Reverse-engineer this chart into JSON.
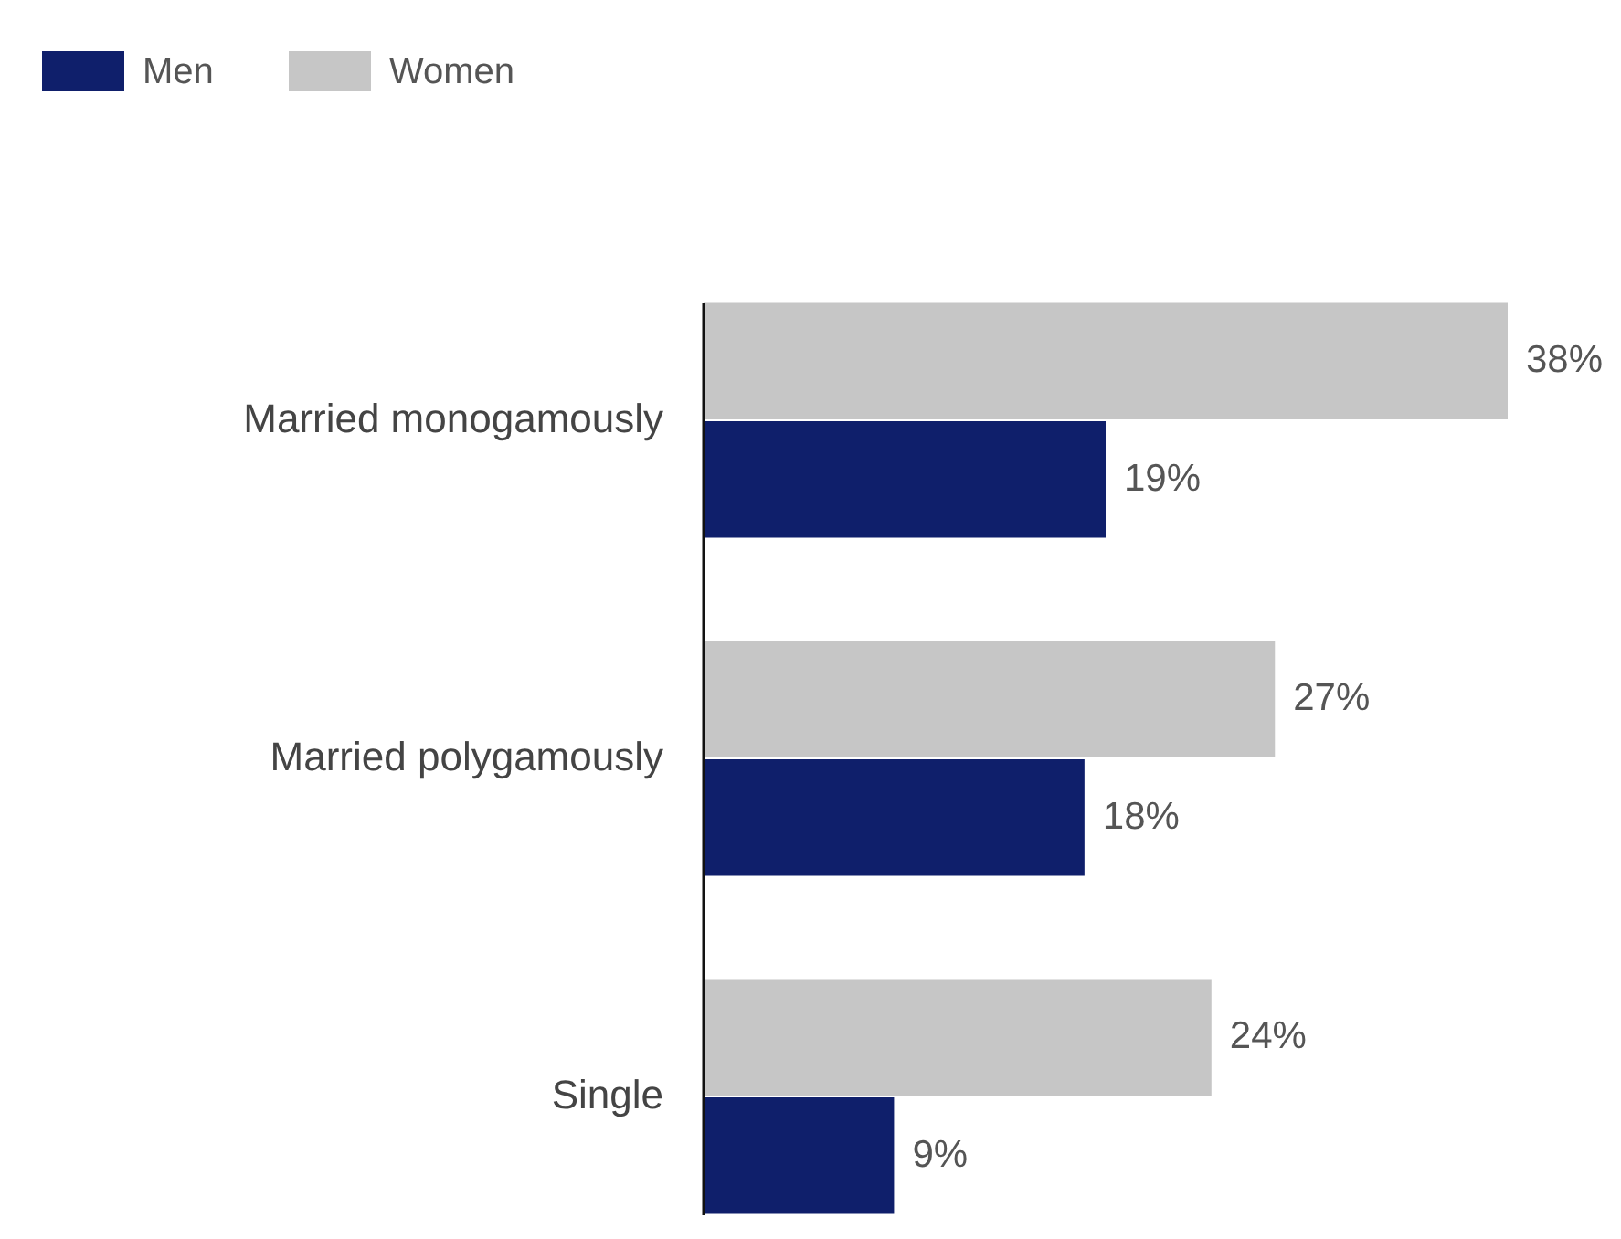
{
  "chart_data": {
    "type": "bar",
    "orientation": "horizontal",
    "categories": [
      "Married monogamously",
      "Married polygamously",
      "Single"
    ],
    "series": [
      {
        "name": "Men",
        "color": "#0f1f6b",
        "values": [
          19,
          18,
          9
        ],
        "value_labels": [
          "19%",
          "18%",
          "9%"
        ]
      },
      {
        "name": "Women",
        "color": "#c6c6c6",
        "values": [
          38,
          27,
          24
        ],
        "value_labels": [
          "38%",
          "27%",
          "24%"
        ]
      }
    ],
    "legend": "top left"
  }
}
